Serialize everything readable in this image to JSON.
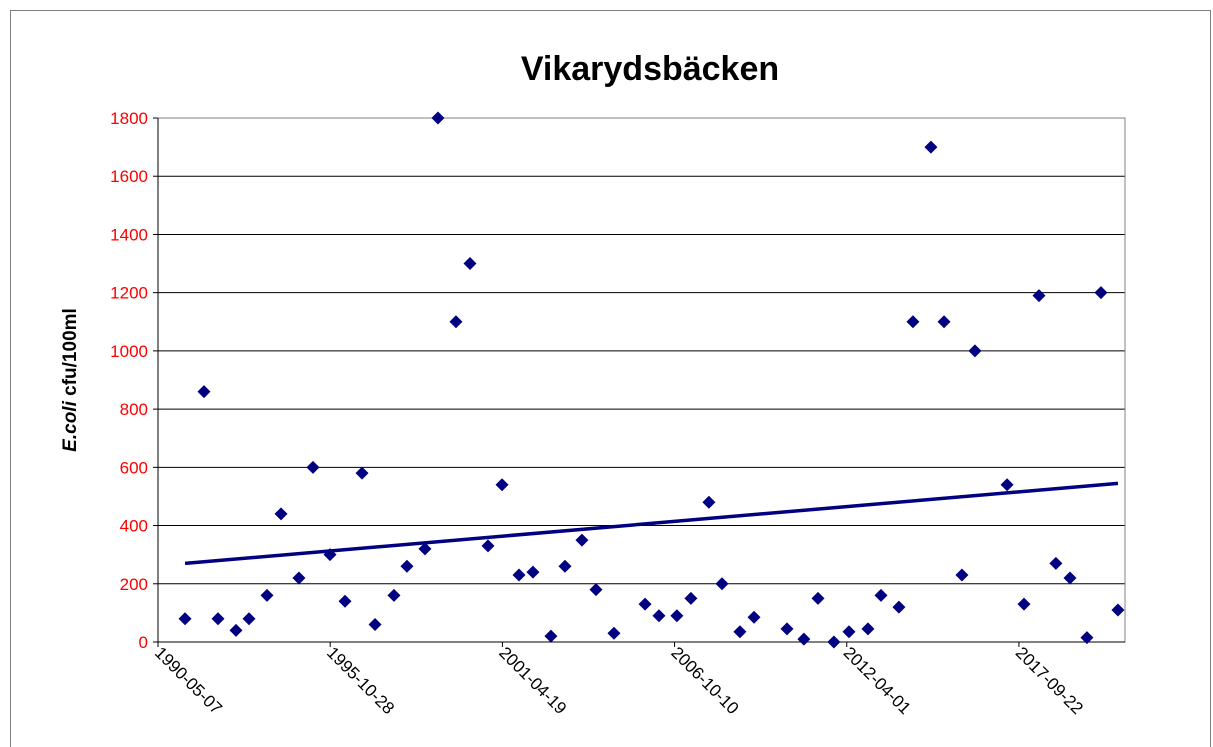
{
  "chart_data": {
    "type": "scatter",
    "title": "Vikarydsbäcken",
    "ylabel": {
      "italic": "E.coli",
      "rest": "cfu/100ml"
    },
    "x": [
      "1991-03-17",
      "1991-10-23",
      "1992-04-03",
      "1992-10-29",
      "1993-03-29",
      "1993-10-24",
      "1994-04-05",
      "1994-10-30",
      "1995-04-11",
      "1995-10-26",
      "1996-04-17",
      "1996-11-01",
      "1997-04-01",
      "1997-11-07",
      "1998-04-07",
      "1998-11-02",
      "1999-04-02",
      "1999-10-28",
      "2000-04-08",
      "2000-11-03",
      "2001-04-15",
      "2001-10-29",
      "2002-04-09",
      "2002-11-04",
      "2003-04-16",
      "2003-10-30",
      "2004-04-10",
      "2004-11-05",
      "2005-11-01",
      "2006-04-12",
      "2006-11-06",
      "2007-04-18",
      "2007-11-13",
      "2008-04-13",
      "2008-11-07",
      "2009-04-20",
      "2010-05-08",
      "2010-11-20",
      "2011-05-03",
      "2011-11-04",
      "2012-04-27",
      "2012-12-03",
      "2013-05-04",
      "2013-11-28",
      "2014-05-10",
      "2014-12-05",
      "2015-05-06",
      "2015-11-30",
      "2016-04-29",
      "2017-05-07",
      "2017-11-20",
      "2018-05-13",
      "2018-11-25",
      "2019-05-08",
      "2019-11-21",
      "2020-05-02",
      "2020-11-15"
    ],
    "values": [
      80,
      860,
      80,
      40,
      80,
      160,
      440,
      220,
      600,
      300,
      140,
      580,
      60,
      160,
      260,
      320,
      1800,
      1100,
      1300,
      330,
      540,
      230,
      240,
      20,
      260,
      350,
      180,
      30,
      130,
      90,
      90,
      150,
      480,
      200,
      35,
      85,
      45,
      10,
      150,
      0,
      35,
      45,
      160,
      120,
      1100,
      1700,
      1100,
      230,
      1000,
      540,
      130,
      1190,
      270,
      220,
      15,
      1200,
      110
    ],
    "color": "#000080",
    "trendline": {
      "x": [
        "1991-03-17",
        "2020-11-15"
      ],
      "values": [
        270,
        545
      ],
      "color": "#000080"
    },
    "xlim": [
      "1990-05-07",
      "2021-02-05"
    ],
    "xticks": [
      "1990-05-07",
      "1995-10-28",
      "2001-04-19",
      "2006-10-10",
      "2012-04-01",
      "2017-09-22"
    ],
    "ylim": [
      0,
      1800
    ],
    "yticks": [
      0,
      200,
      400,
      600,
      800,
      1000,
      1200,
      1400,
      1600,
      1800
    ],
    "ytick_color": "#ff0000",
    "grid": true
  }
}
